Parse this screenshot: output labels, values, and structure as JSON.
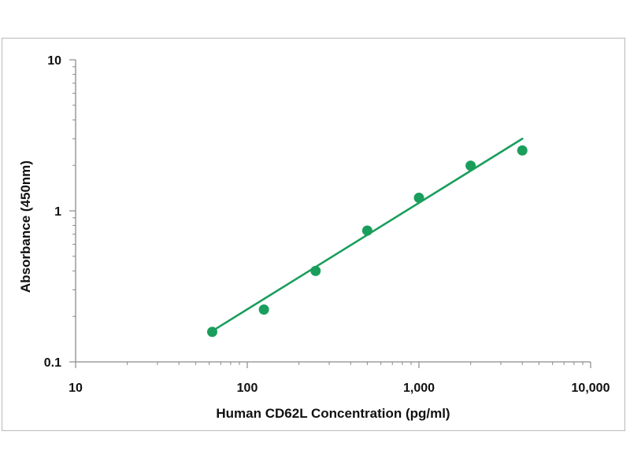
{
  "chart_data": {
    "type": "scatter",
    "title": "",
    "xlabel": "Human CD62L Concentration (pg/ml)",
    "ylabel": "Absorbance (450nm)",
    "x_scale": "log",
    "y_scale": "log",
    "xlim": [
      10,
      10000
    ],
    "ylim": [
      0.1,
      10
    ],
    "x_ticks": [
      {
        "value": 10,
        "label": "10"
      },
      {
        "value": 100,
        "label": "100"
      },
      {
        "value": 1000,
        "label": "1,000"
      },
      {
        "value": 10000,
        "label": "10,000"
      }
    ],
    "y_ticks": [
      {
        "value": 0.1,
        "label": "0.1"
      },
      {
        "value": 1,
        "label": "1"
      },
      {
        "value": 10,
        "label": "10"
      }
    ],
    "grid": false,
    "legend": "none",
    "color": "#1a9e5c",
    "points": [
      {
        "x": 62.5,
        "y": 0.158
      },
      {
        "x": 125,
        "y": 0.222
      },
      {
        "x": 250,
        "y": 0.4
      },
      {
        "x": 500,
        "y": 0.74
      },
      {
        "x": 1000,
        "y": 1.22
      },
      {
        "x": 2000,
        "y": 1.99
      },
      {
        "x": 4000,
        "y": 2.51
      }
    ],
    "fit_line": [
      {
        "x": 62.5,
        "y": 0.16
      },
      {
        "x": 4000,
        "y": 3.0
      }
    ]
  }
}
